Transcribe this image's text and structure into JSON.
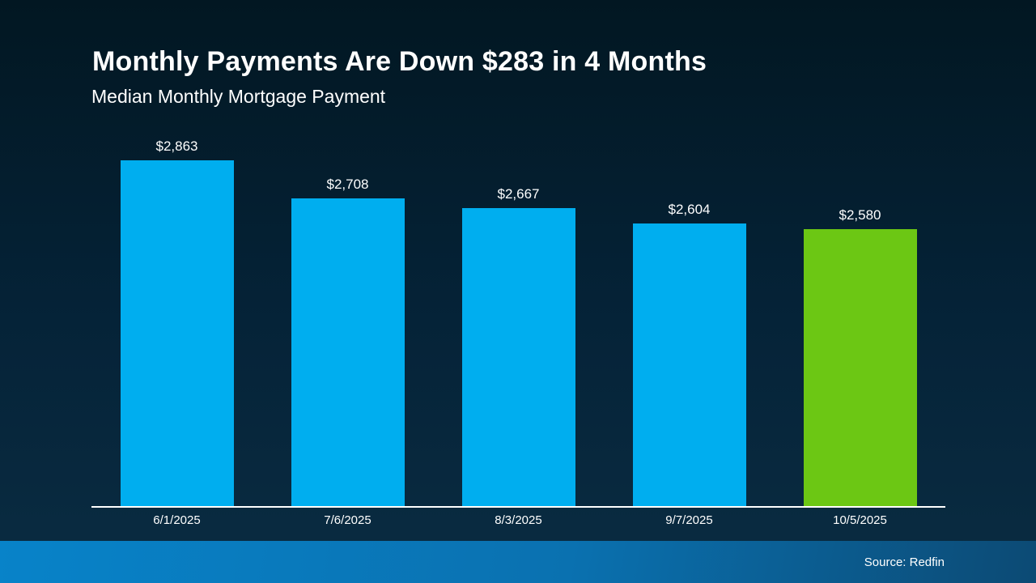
{
  "slide": {
    "title": "Monthly Payments Are Down $283 in 4 Months",
    "subtitle": "Median Monthly Mortgage Payment",
    "source_label": "Source: Redfin"
  },
  "chart_data": {
    "type": "bar",
    "title": "Monthly Payments Are Down $283 in 4 Months",
    "subtitle": "Median Monthly Mortgage Payment",
    "categories": [
      "6/1/2025",
      "7/6/2025",
      "8/3/2025",
      "9/7/2025",
      "10/5/2025"
    ],
    "values": [
      2863,
      2708,
      2667,
      2604,
      2580
    ],
    "value_labels": [
      "$2,863",
      "$2,708",
      "$2,667",
      "$2,604",
      "$2,580"
    ],
    "bar_colors": [
      "#00AEEF",
      "#00AEEF",
      "#00AEEF",
      "#00AEEF",
      "#6CC714"
    ],
    "highlight_index": 4,
    "ylim": [
      1440,
      2900
    ],
    "xlabel": "",
    "ylabel": "",
    "grid": false,
    "legend": false,
    "source": "Source: Redfin"
  },
  "colors": {
    "background_top": "#021722",
    "background_mid": "#052338",
    "background_bottom": "#0A2C42",
    "bar_blue": "#00AEEF",
    "bar_green": "#6CC714",
    "axis_line": "#FFFFFF",
    "text": "#FFFFFF",
    "footer_gradient_left": "#0883C9",
    "footer_gradient_right": "#0C4A74"
  }
}
